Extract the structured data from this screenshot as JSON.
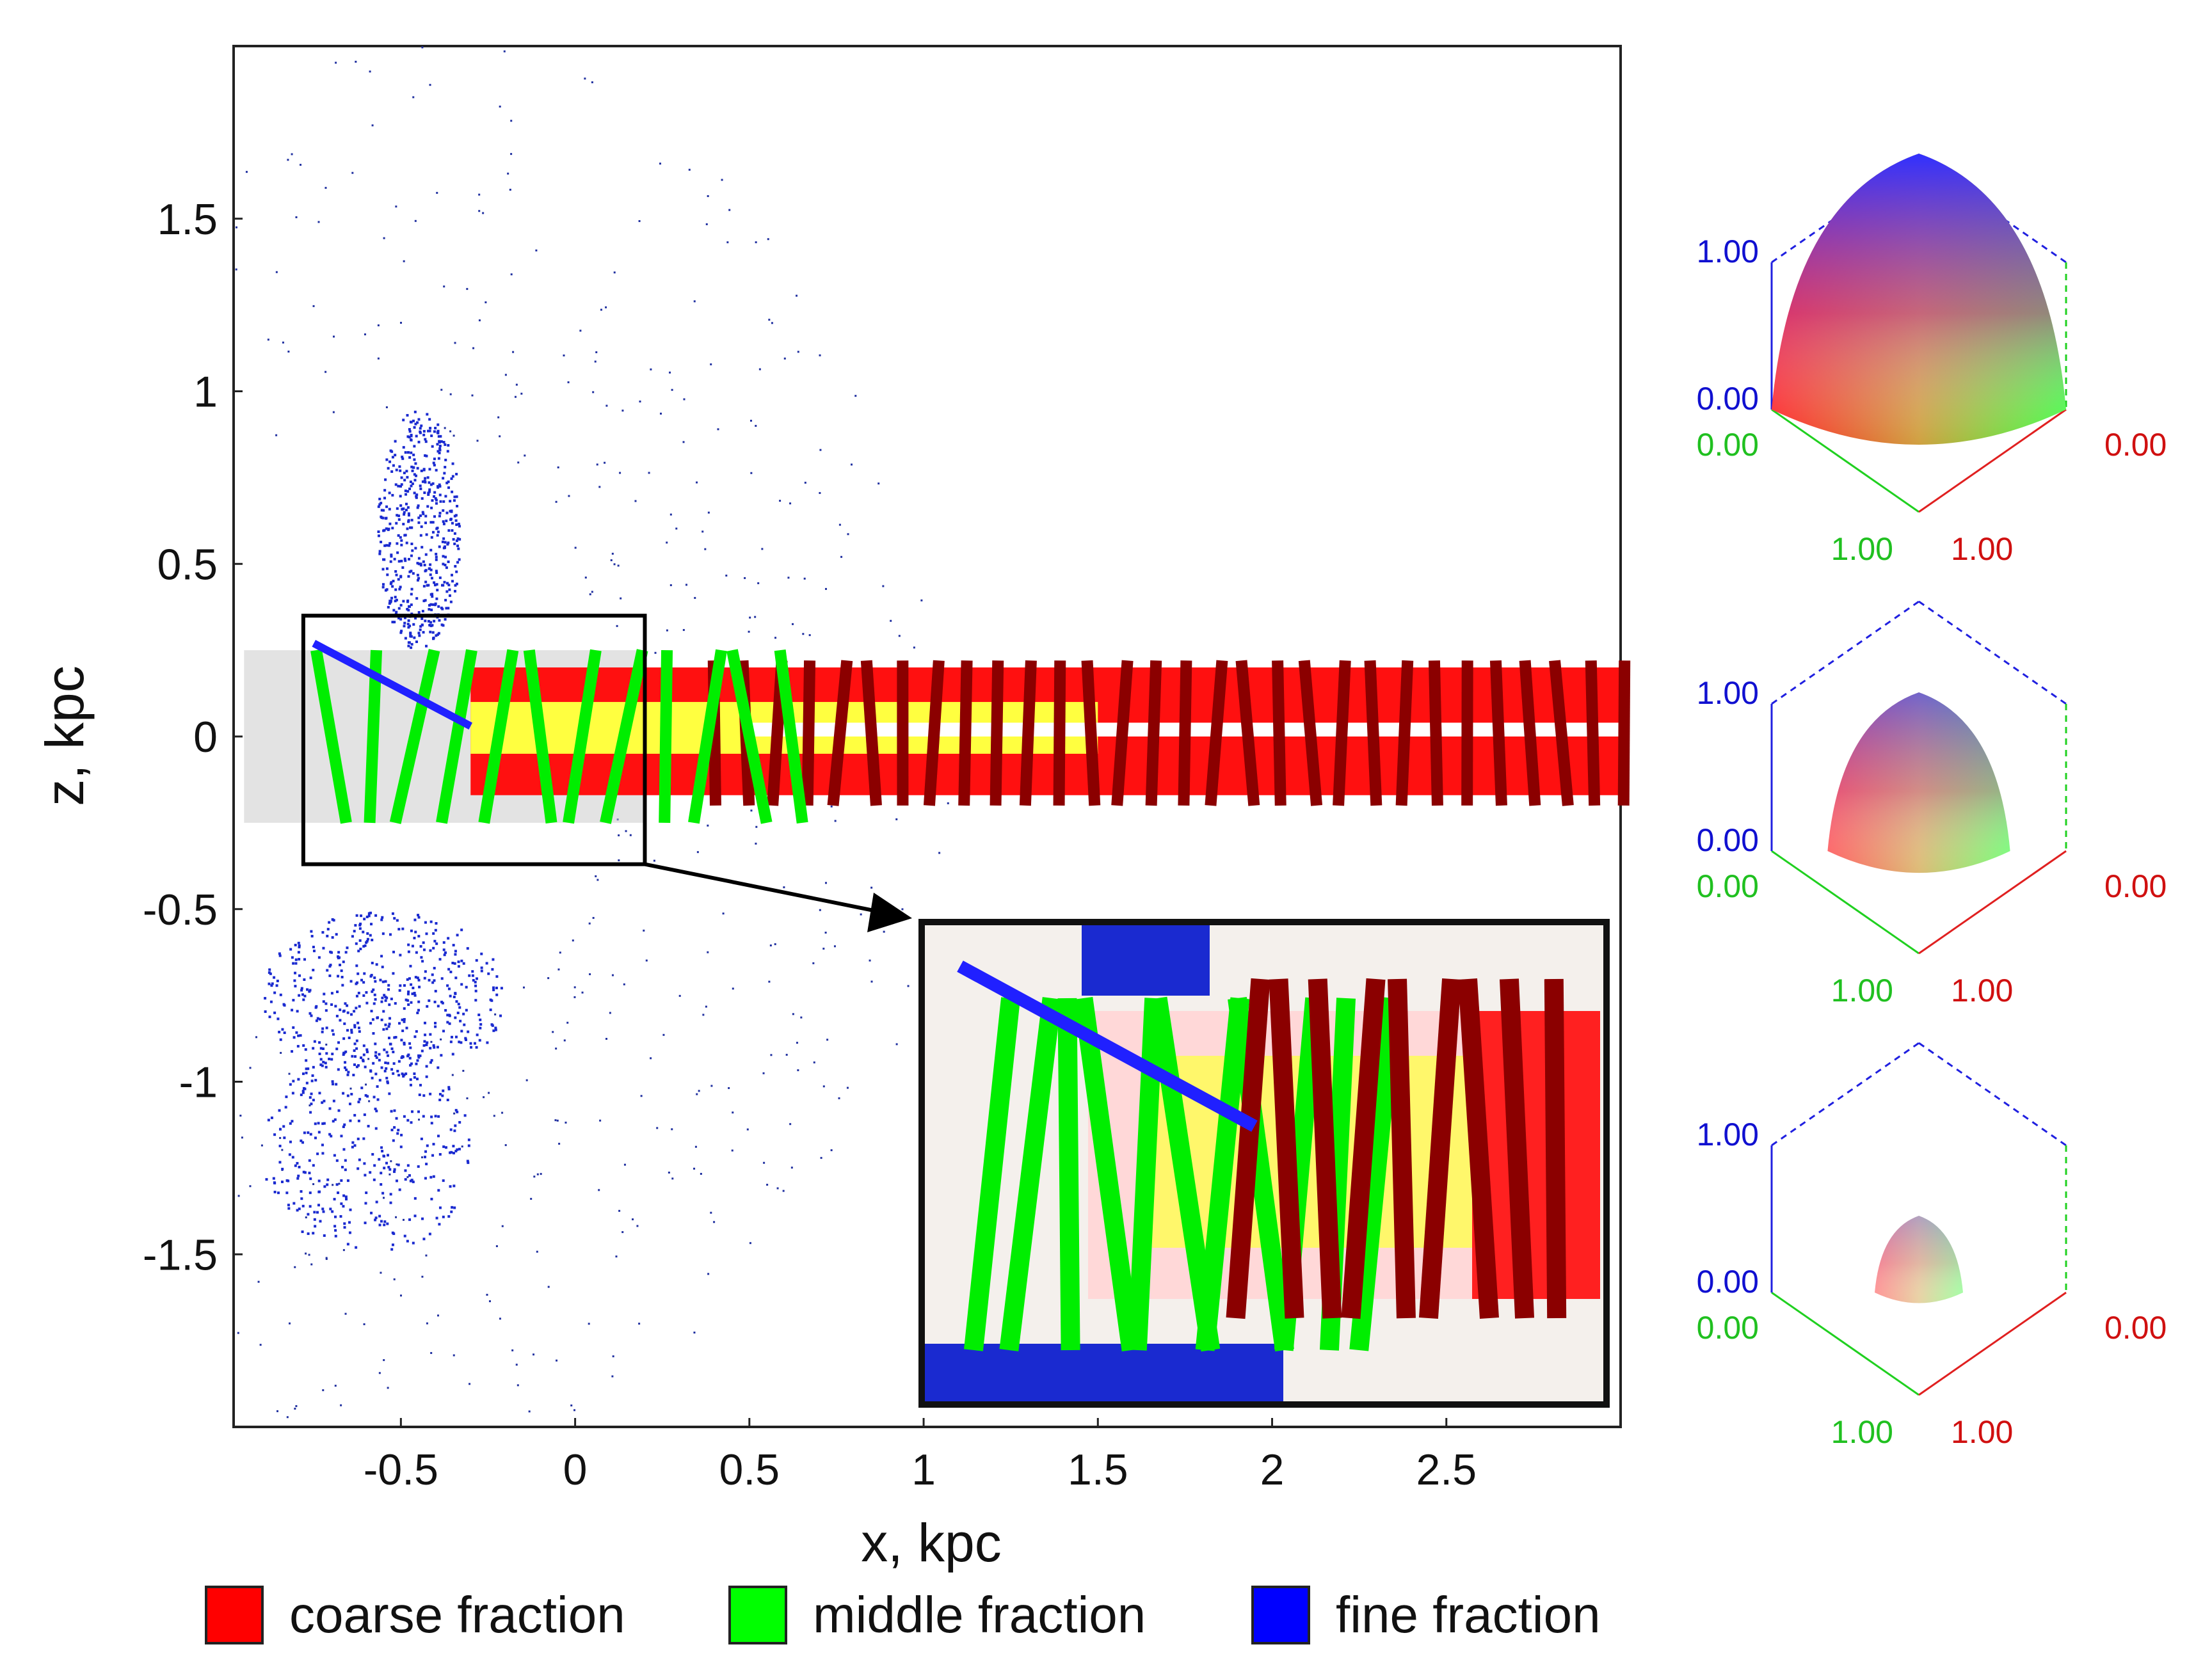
{
  "chart_data": {
    "type": "scatter",
    "title": "",
    "xlabel": "x, kpc",
    "ylabel": "z, kpc",
    "xlim": [
      -0.98,
      3.0
    ],
    "ylim": [
      -2.0,
      2.0
    ],
    "x_ticks": [
      {
        "value": -0.5,
        "label": "-0.5"
      },
      {
        "value": 0,
        "label": "0"
      },
      {
        "value": 0.5,
        "label": "0.5"
      },
      {
        "value": 1,
        "label": "1"
      },
      {
        "value": 1.5,
        "label": "1.5"
      },
      {
        "value": 2,
        "label": "2"
      },
      {
        "value": 2.5,
        "label": "2.5"
      }
    ],
    "y_ticks": [
      {
        "value": 1.5,
        "label": "1.5"
      },
      {
        "value": 1,
        "label": "1"
      },
      {
        "value": 0.5,
        "label": "0.5"
      },
      {
        "value": 0,
        "label": "0"
      },
      {
        "value": -0.5,
        "label": "-0.5"
      },
      {
        "value": -1,
        "label": "-1"
      },
      {
        "value": -1.5,
        "label": "-1.5"
      }
    ],
    "legend": [
      {
        "label": "coarse fraction",
        "color": "#ff0000"
      },
      {
        "label": "middle fraction",
        "color": "#00ff00"
      },
      {
        "label": "fine fraction",
        "color": "#0000ff"
      }
    ],
    "zoom_box": {
      "x_range": [
        -0.78,
        0.2
      ],
      "z_range": [
        -0.37,
        0.35
      ]
    },
    "colour_keys": [
      {
        "blue_max": "1.00",
        "blue_min": "0.00",
        "green_min": "0.00",
        "red_min": "0.00",
        "green_max": "1.00",
        "red_max": "1.00",
        "scale": 1.0
      },
      {
        "blue_max": "1.00",
        "blue_min": "0.00",
        "green_min": "0.00",
        "red_min": "0.00",
        "green_max": "1.00",
        "red_max": "1.00",
        "scale": 0.62
      },
      {
        "blue_max": "1.00",
        "blue_min": "0.00",
        "green_min": "0.00",
        "red_min": "0.00",
        "green_max": "1.00",
        "red_max": "1.00",
        "scale": 0.3
      }
    ]
  }
}
